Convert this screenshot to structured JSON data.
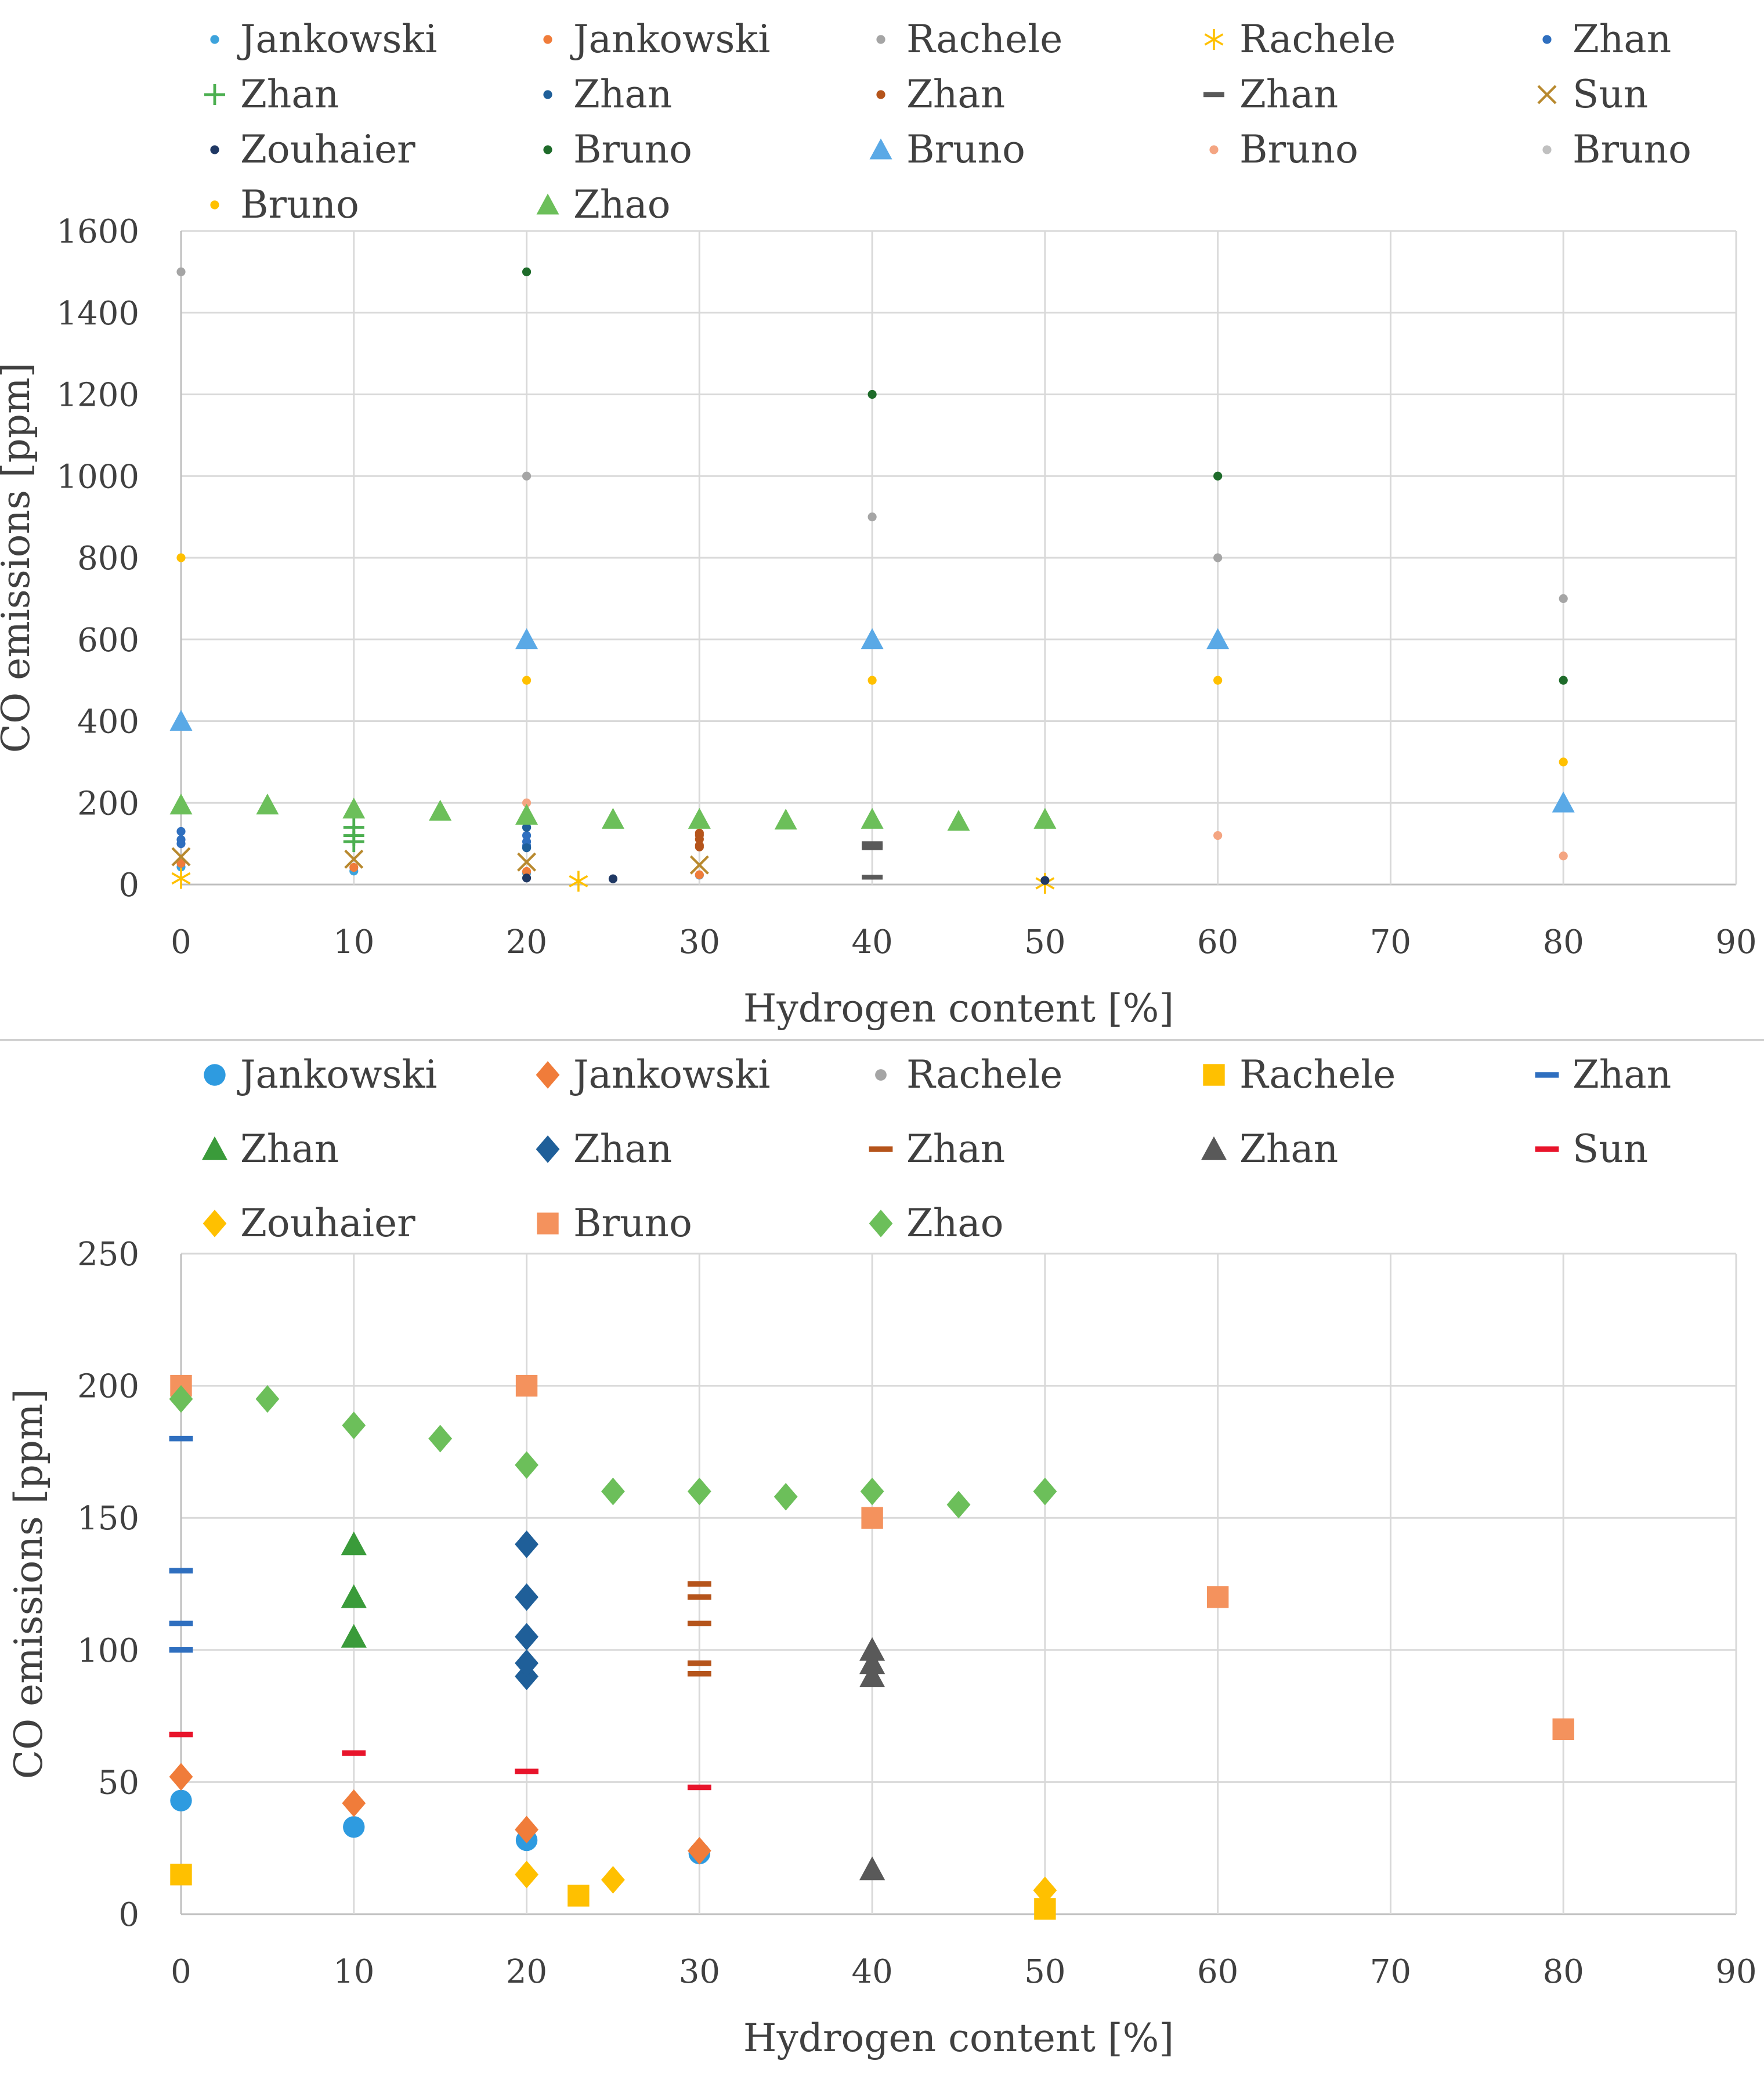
{
  "chart_data": [
    {
      "type": "scatter",
      "title": "",
      "xlabel": "Hydrogen content [%]",
      "ylabel": "CO emissions [ppm]",
      "xlim": [
        0,
        90
      ],
      "ylim": [
        0,
        1600
      ],
      "x_ticks": [
        0,
        10,
        20,
        30,
        40,
        50,
        60,
        70,
        80,
        90
      ],
      "y_ticks": [
        0,
        200,
        400,
        600,
        800,
        1000,
        1200,
        1400,
        1600
      ],
      "grid": true,
      "legend_position": "top",
      "series": [
        {
          "name": "Jankowski",
          "marker": "dot",
          "color": "#3da3dc",
          "points": [
            [
              0,
              43
            ],
            [
              10,
              33
            ],
            [
              20,
              28
            ],
            [
              30,
              23
            ]
          ]
        },
        {
          "name": "Jankowski",
          "marker": "dot",
          "color": "#f07c3a",
          "points": [
            [
              0,
              52
            ],
            [
              10,
              42
            ],
            [
              20,
              32
            ],
            [
              30,
              24
            ]
          ]
        },
        {
          "name": "Rachele",
          "marker": "dot",
          "color": "#a5a5a5",
          "points": [
            [
              0,
              1500
            ],
            [
              20,
              1000
            ],
            [
              40,
              900
            ],
            [
              60,
              800
            ],
            [
              80,
              700
            ]
          ]
        },
        {
          "name": "Rachele",
          "marker": "star",
          "color": "#ffc000",
          "points": [
            [
              0,
              15
            ],
            [
              23,
              8
            ],
            [
              50,
              3
            ]
          ]
        },
        {
          "name": "Zhan",
          "marker": "dot",
          "color": "#2f6fbf",
          "points": [
            [
              0,
              100
            ],
            [
              0,
              110
            ],
            [
              0,
              130
            ],
            [
              20,
              90
            ],
            [
              20,
              95
            ],
            [
              20,
              105
            ],
            [
              20,
              120
            ],
            [
              20,
              140
            ]
          ]
        },
        {
          "name": "Zhan",
          "marker": "plus",
          "color": "#4caf50",
          "points": [
            [
              10,
              105
            ],
            [
              10,
              120
            ],
            [
              10,
              140
            ]
          ]
        },
        {
          "name": "Zhan",
          "marker": "dot",
          "color": "#1f5f99",
          "points": [
            [
              20,
              90
            ],
            [
              20,
              140
            ]
          ]
        },
        {
          "name": "Zhan",
          "marker": "dot",
          "color": "#b5541b",
          "points": [
            [
              30,
              92
            ],
            [
              30,
              96
            ],
            [
              30,
              111
            ],
            [
              30,
              121
            ],
            [
              30,
              126
            ]
          ]
        },
        {
          "name": "Zhan",
          "marker": "dash",
          "color": "#595959",
          "points": [
            [
              40,
              18
            ],
            [
              40,
              90
            ],
            [
              40,
              95
            ],
            [
              40,
              100
            ]
          ]
        },
        {
          "name": "Sun",
          "marker": "x",
          "color": "#b8892e",
          "points": [
            [
              0,
              68
            ],
            [
              10,
              62
            ],
            [
              20,
              55
            ],
            [
              30,
              48
            ]
          ]
        },
        {
          "name": "Zouhaier",
          "marker": "dot",
          "color": "#1f3864",
          "points": [
            [
              20,
              16
            ],
            [
              25,
              14
            ],
            [
              50,
              10
            ]
          ]
        },
        {
          "name": "Bruno",
          "marker": "dot",
          "color": "#1e6b2a",
          "points": [
            [
              20,
              1500
            ],
            [
              40,
              1200
            ],
            [
              60,
              1000
            ],
            [
              80,
              500
            ]
          ]
        },
        {
          "name": "Bruno",
          "marker": "triangle",
          "color": "#5aa9e6",
          "points": [
            [
              0,
              400
            ],
            [
              20,
              600
            ],
            [
              40,
              600
            ],
            [
              60,
              600
            ],
            [
              80,
              200
            ]
          ]
        },
        {
          "name": "Bruno",
          "marker": "dot",
          "color": "#f4a582",
          "points": [
            [
              0,
              200
            ],
            [
              20,
              200
            ],
            [
              40,
              150
            ],
            [
              60,
              120
            ],
            [
              80,
              70
            ]
          ]
        },
        {
          "name": "Bruno",
          "marker": "dot",
          "color": "#c0c0c0",
          "points": []
        },
        {
          "name": "Bruno",
          "marker": "dot",
          "color": "#ffc000",
          "points": [
            [
              0,
              800
            ],
            [
              20,
              500
            ],
            [
              40,
              500
            ],
            [
              60,
              500
            ],
            [
              80,
              300
            ]
          ]
        },
        {
          "name": "Zhao",
          "marker": "triangle",
          "color": "#6cbf5a",
          "points": [
            [
              0,
              195
            ],
            [
              5,
              195
            ],
            [
              10,
              185
            ],
            [
              15,
              180
            ],
            [
              20,
              170
            ],
            [
              25,
              160
            ],
            [
              30,
              160
            ],
            [
              35,
              158
            ],
            [
              40,
              160
            ],
            [
              45,
              155
            ],
            [
              50,
              160
            ]
          ]
        }
      ]
    },
    {
      "type": "scatter",
      "title": "",
      "xlabel": "Hydrogen content [%]",
      "ylabel": "CO emissions [ppm]",
      "xlim": [
        0,
        90
      ],
      "ylim": [
        0,
        250
      ],
      "x_ticks": [
        0,
        10,
        20,
        30,
        40,
        50,
        60,
        70,
        80,
        90
      ],
      "y_ticks": [
        0,
        50,
        100,
        150,
        200,
        250
      ],
      "grid": true,
      "legend_position": "top",
      "series": [
        {
          "name": "Jankowski",
          "marker": "circle",
          "color": "#2e9be0",
          "points": [
            [
              0,
              43
            ],
            [
              10,
              33
            ],
            [
              20,
              28
            ],
            [
              30,
              23
            ]
          ]
        },
        {
          "name": "Jankowski",
          "marker": "diamond",
          "color": "#f07c3a",
          "points": [
            [
              0,
              52
            ],
            [
              10,
              42
            ],
            [
              20,
              32
            ],
            [
              30,
              24
            ]
          ]
        },
        {
          "name": "Rachele",
          "marker": "dot",
          "color": "#a5a5a5",
          "points": []
        },
        {
          "name": "Rachele",
          "marker": "square",
          "color": "#ffc000",
          "points": [
            [
              0,
              15
            ],
            [
              23,
              7
            ],
            [
              50,
              2
            ]
          ]
        },
        {
          "name": "Zhan",
          "marker": "dash",
          "color": "#2f6fbf",
          "points": [
            [
              0,
              100
            ],
            [
              0,
              110
            ],
            [
              0,
              130
            ],
            [
              0,
              180
            ]
          ]
        },
        {
          "name": "Zhan",
          "marker": "triangle",
          "color": "#3a9b3a",
          "points": [
            [
              10,
              105
            ],
            [
              10,
              120
            ],
            [
              10,
              140
            ]
          ]
        },
        {
          "name": "Zhan",
          "marker": "diamond",
          "color": "#1f5f99",
          "points": [
            [
              20,
              90
            ],
            [
              20,
              95
            ],
            [
              20,
              105
            ],
            [
              20,
              120
            ],
            [
              20,
              140
            ]
          ]
        },
        {
          "name": "Zhan",
          "marker": "dash",
          "color": "#b5541b",
          "points": [
            [
              30,
              91
            ],
            [
              30,
              95
            ],
            [
              30,
              110
            ],
            [
              30,
              120
            ],
            [
              30,
              125
            ]
          ]
        },
        {
          "name": "Zhan",
          "marker": "triangle",
          "color": "#595959",
          "points": [
            [
              40,
              17
            ],
            [
              40,
              90
            ],
            [
              40,
              95
            ],
            [
              40,
              100
            ]
          ]
        },
        {
          "name": "Sun",
          "marker": "dash",
          "color": "#e8142b",
          "points": [
            [
              0,
              68
            ],
            [
              10,
              61
            ],
            [
              20,
              54
            ],
            [
              30,
              48
            ]
          ]
        },
        {
          "name": "Zouhaier",
          "marker": "diamond",
          "color": "#ffc000",
          "points": [
            [
              20,
              15
            ],
            [
              25,
              13
            ],
            [
              50,
              9
            ]
          ]
        },
        {
          "name": "Bruno",
          "marker": "square",
          "color": "#f4925d",
          "points": [
            [
              0,
              200
            ],
            [
              20,
              200
            ],
            [
              40,
              150
            ],
            [
              60,
              120
            ],
            [
              80,
              70
            ]
          ]
        },
        {
          "name": "Zhao",
          "marker": "diamond",
          "color": "#6cbf5a",
          "points": [
            [
              0,
              195
            ],
            [
              5,
              195
            ],
            [
              10,
              185
            ],
            [
              15,
              180
            ],
            [
              20,
              170
            ],
            [
              25,
              160
            ],
            [
              30,
              160
            ],
            [
              35,
              158
            ],
            [
              40,
              160
            ],
            [
              45,
              155
            ],
            [
              50,
              160
            ]
          ]
        }
      ]
    }
  ]
}
